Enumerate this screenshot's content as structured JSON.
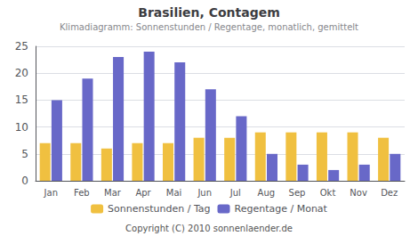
{
  "chart_data": {
    "type": "bar",
    "title": "Brasilien, Contagem",
    "subtitle": "Klimadiagramm: Sonnenstunden / Regentage, monatlich, gemittelt",
    "annotation": "Copyright (C) 2010 sonnenlaender.de",
    "categories": [
      "Jan",
      "Feb",
      "Mar",
      "Apr",
      "Mai",
      "Jun",
      "Jul",
      "Aug",
      "Sep",
      "Okt",
      "Nov",
      "Dez"
    ],
    "series": [
      {
        "name": "Sonnenstunden / Tag",
        "color": "#f0c040",
        "values": [
          7,
          7,
          6,
          7,
          7,
          8,
          8,
          9,
          9,
          9,
          9,
          8
        ]
      },
      {
        "name": "Regentage / Monat",
        "color": "#6868c8",
        "values": [
          15,
          19,
          23,
          24,
          22,
          17,
          12,
          5,
          3,
          2,
          3,
          5
        ]
      }
    ],
    "ylim": [
      0,
      25
    ],
    "yticks": [
      0,
      5,
      10,
      15,
      20,
      25
    ],
    "grid": true,
    "legend": "bottom"
  }
}
